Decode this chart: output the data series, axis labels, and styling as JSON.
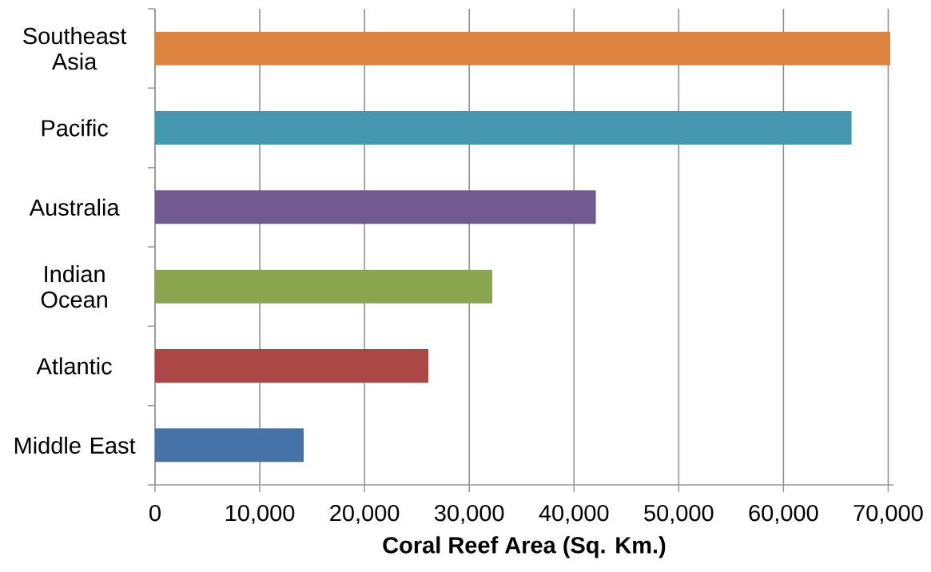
{
  "chart_data": {
    "type": "bar",
    "orientation": "horizontal",
    "xlabel": "Coral Reef Area (Sq. Km.)",
    "categories": [
      "Southeast Asia",
      "Pacific",
      "Australia",
      "Indian Ocean",
      "Atlantic",
      "Middle East"
    ],
    "values": [
      70200,
      66500,
      42100,
      32200,
      26100,
      14200
    ],
    "colors": [
      "#dc843f",
      "#4398b0",
      "#715a8e",
      "#8aa54e",
      "#a94745",
      "#4673a7"
    ],
    "xlim": [
      0,
      70500
    ],
    "xticks": [
      {
        "value": 0,
        "label": "0"
      },
      {
        "value": 10000,
        "label": "10,000"
      },
      {
        "value": 20000,
        "label": "20,000"
      },
      {
        "value": 30000,
        "label": "30,000"
      },
      {
        "value": 40000,
        "label": "40,000"
      },
      {
        "value": 50000,
        "label": "50,000"
      },
      {
        "value": 60000,
        "label": "60,000"
      },
      {
        "value": 70000,
        "label": "70,000"
      }
    ],
    "grid": "x"
  }
}
